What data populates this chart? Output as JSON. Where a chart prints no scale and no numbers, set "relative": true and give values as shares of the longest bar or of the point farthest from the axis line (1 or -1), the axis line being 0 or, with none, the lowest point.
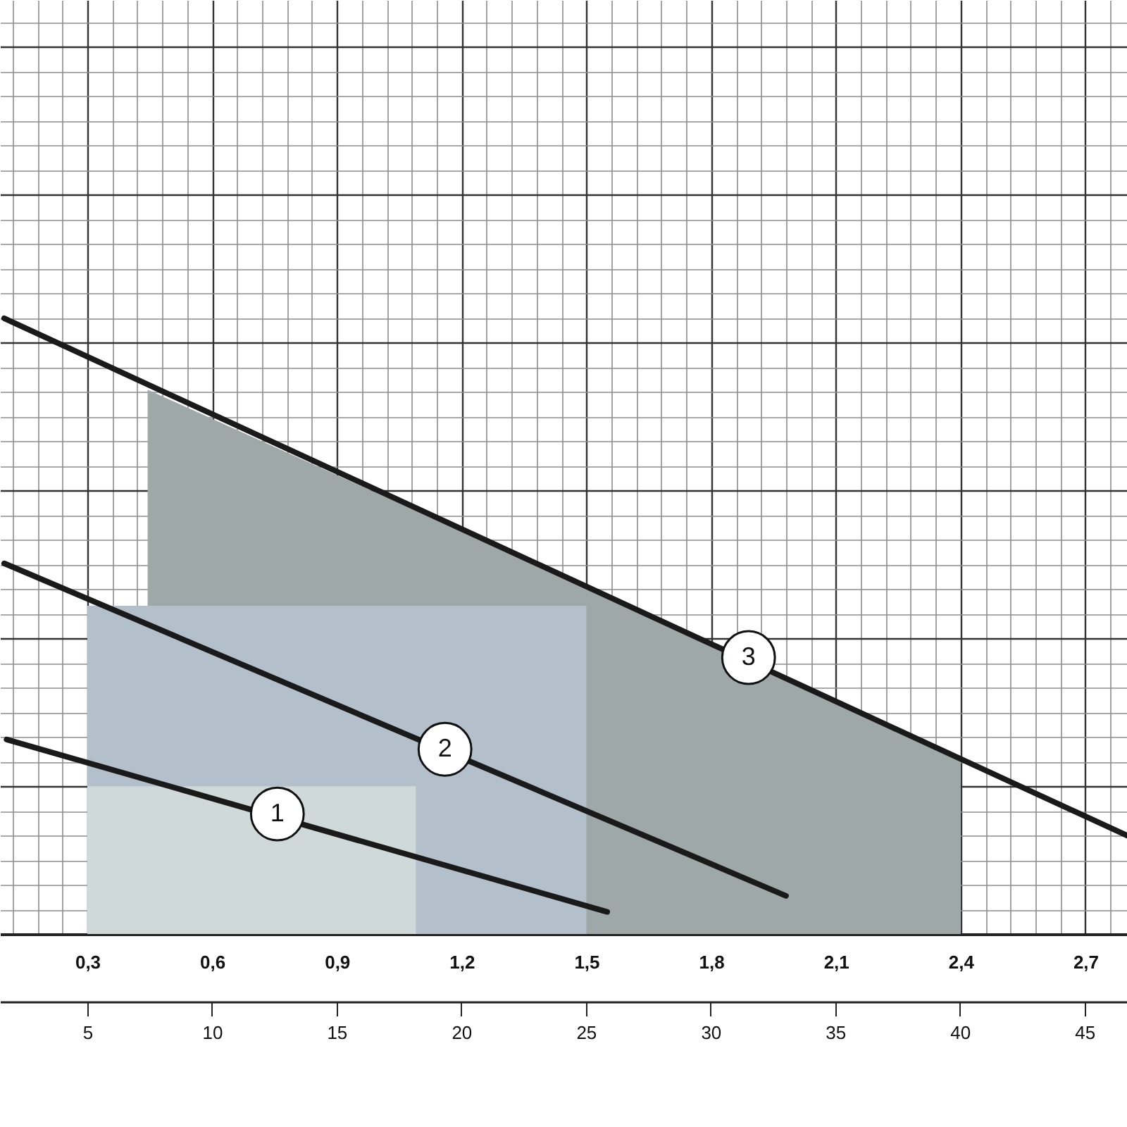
{
  "chart_data": {
    "type": "line",
    "relative": true,
    "grid": true,
    "xlim": [
      0.09,
      2.8
    ],
    "xticks": [
      {
        "value": 0.3,
        "label": "0,3"
      },
      {
        "value": 0.6,
        "label": "0,6"
      },
      {
        "value": 0.9,
        "label": "0,9"
      },
      {
        "value": 1.2,
        "label": "1,2"
      },
      {
        "value": 1.5,
        "label": "1,5"
      },
      {
        "value": 1.8,
        "label": "1,8"
      },
      {
        "value": 2.1,
        "label": "2,1"
      },
      {
        "value": 2.4,
        "label": "2,4"
      },
      {
        "value": 2.7,
        "label": "2,7"
      }
    ],
    "x2lim": [
      1.5,
      46.7
    ],
    "x2ticks": [
      5,
      10,
      15,
      20,
      25,
      30,
      35,
      40,
      45
    ],
    "series": [
      {
        "type": "area",
        "color": "#9ea8a8",
        "x": [
          0.445,
          2.4
        ],
        "values": [
          0.884,
          0.289
        ]
      },
      {
        "type": "area",
        "color": "#b3bfca",
        "x": [
          0.3,
          1.5
        ],
        "values": [
          0.533,
          0.533
        ]
      },
      {
        "type": "area",
        "color": "#cfd9d9",
        "x": [
          0.3,
          1.09
        ],
        "values": [
          0.24,
          0.24
        ]
      },
      {
        "color": "#1a1a1a",
        "x": [
          0.106,
          1.55
        ],
        "values": [
          0.316,
          0.036
        ]
      },
      {
        "color": "#1a1a1a",
        "x": [
          0.1,
          1.98
        ],
        "values": [
          0.602,
          0.062
        ]
      },
      {
        "color": "#1a1a1a",
        "x": [
          0.1,
          2.8
        ],
        "values": [
          1,
          0.16
        ]
      }
    ],
    "annotations": [
      {
        "text": "1",
        "x": 0.757,
        "y": 0.195
      },
      {
        "text": "2",
        "x": 1.16,
        "y": 0.3
      },
      {
        "text": "3",
        "x": 1.89,
        "y": 0.449
      }
    ]
  }
}
